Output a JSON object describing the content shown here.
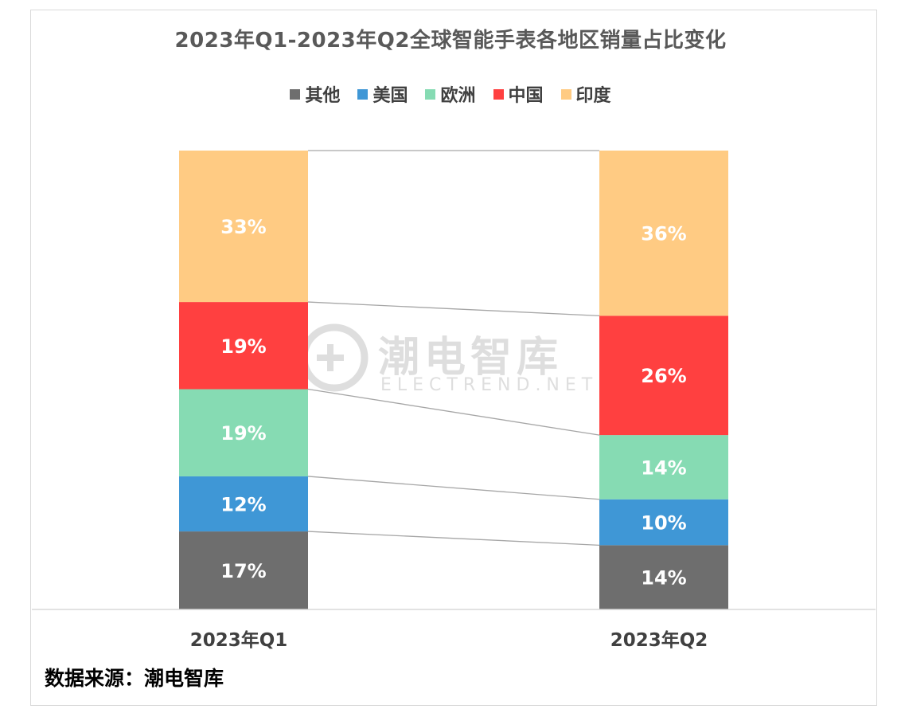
{
  "title": "2023年Q1-2023年Q2全球智能手表各地区销量占比变化",
  "source": "数据来源：潮电智库",
  "watermark": {
    "main": "潮电智库",
    "sub": "ELECTREND.NET"
  },
  "chart_data": {
    "type": "bar",
    "stacked": true,
    "percent_stacked": true,
    "categories": [
      "2023年Q1",
      "2023年Q2"
    ],
    "series": [
      {
        "name": "其他",
        "color": "#6e6e6e",
        "values": [
          17,
          14
        ],
        "labels": [
          "17%",
          "14%"
        ]
      },
      {
        "name": "美国",
        "color": "#3f97d6",
        "values": [
          12,
          10
        ],
        "labels": [
          "12%",
          "10%"
        ]
      },
      {
        "name": "欧洲",
        "color": "#86dbb3",
        "values": [
          19,
          14
        ],
        "labels": [
          "19%",
          "14%"
        ]
      },
      {
        "name": "中国",
        "color": "#ff4040",
        "values": [
          19,
          26
        ],
        "labels": [
          "19%",
          "26%"
        ]
      },
      {
        "name": "印度",
        "color": "#ffcb83",
        "values": [
          33,
          36
        ],
        "labels": [
          "33%",
          "36%"
        ]
      }
    ],
    "legend_position": "top",
    "series_lines": true,
    "grid": false
  }
}
